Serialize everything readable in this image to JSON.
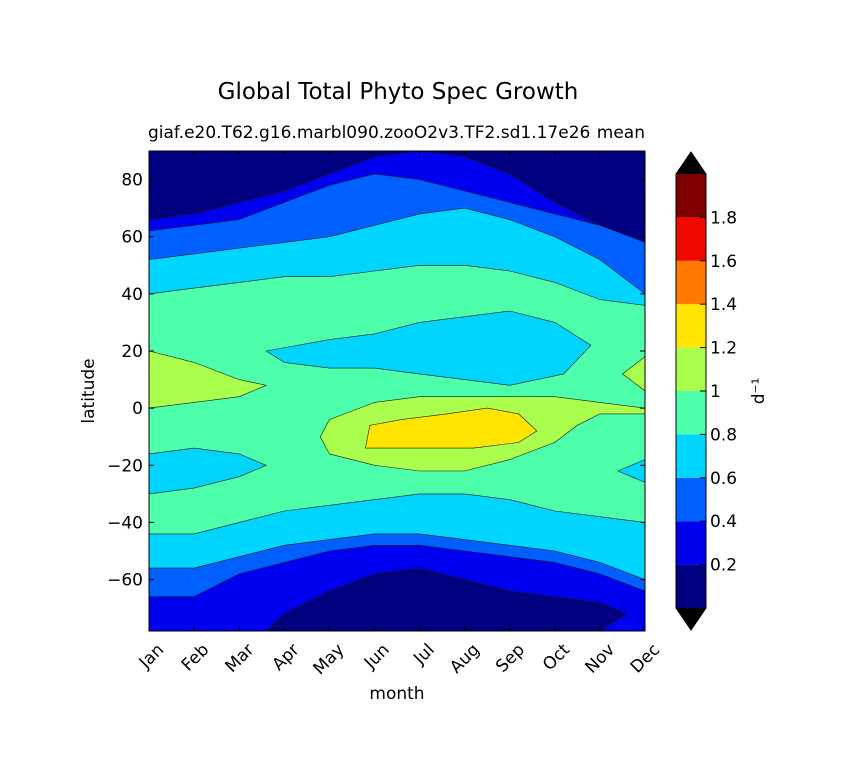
{
  "chart_data": {
    "type": "contour",
    "title": "Global Total Phyto Spec Growth",
    "subtitle_left": "giaf.e20.T62.g16.marbl090.zooO2v3.TF2.sd1.17e26",
    "subtitle_right": "mean",
    "xlabel": "month",
    "ylabel": "latitude",
    "colorbar_label": "d⁻¹",
    "x_ticks": [
      "Jan",
      "Feb",
      "Mar",
      "Apr",
      "May",
      "Jun",
      "Jul",
      "Aug",
      "Sep",
      "Oct",
      "Nov",
      "Dec"
    ],
    "y_ticks": [
      {
        "value": 80,
        "label": "80"
      },
      {
        "value": 60,
        "label": "60"
      },
      {
        "value": 40,
        "label": "40"
      },
      {
        "value": 20,
        "label": "20"
      },
      {
        "value": 0,
        "label": "0"
      },
      {
        "value": -20,
        "label": "−20"
      },
      {
        "value": -40,
        "label": "−40"
      },
      {
        "value": -60,
        "label": "−60"
      }
    ],
    "ylim": [
      -78,
      90
    ],
    "xlim": [
      0,
      11
    ],
    "levels": [
      0.0,
      0.2,
      0.4,
      0.6,
      0.8,
      1.0,
      1.2,
      1.4,
      1.6,
      1.8,
      2.0
    ],
    "colorbar_ticks": [
      {
        "value": 0.2,
        "label": "0.2"
      },
      {
        "value": 0.4,
        "label": "0.4"
      },
      {
        "value": 0.6,
        "label": "0.6"
      },
      {
        "value": 0.8,
        "label": "0.8"
      },
      {
        "value": 1.0,
        "label": "1"
      },
      {
        "value": 1.2,
        "label": "1.2"
      },
      {
        "value": 1.4,
        "label": "1.4"
      },
      {
        "value": 1.6,
        "label": "1.6"
      },
      {
        "value": 1.8,
        "label": "1.8"
      }
    ],
    "colors": [
      "#000080",
      "#0000f1",
      "#0060ff",
      "#00d5ff",
      "#4dffaa",
      "#aaff4d",
      "#ffe500",
      "#ff7800",
      "#f10800",
      "#800000"
    ],
    "under_color": "#000000",
    "over_color": "#000000",
    "regions": [
      {
        "level_index": 2,
        "polygon": [
          [
            0,
            90
          ],
          [
            11,
            90
          ],
          [
            11,
            -78
          ],
          [
            0,
            -78
          ]
        ]
      },
      {
        "level_index": 1,
        "polygon": [
          [
            0,
            90
          ],
          [
            11,
            90
          ],
          [
            11,
            60
          ],
          [
            10,
            64
          ],
          [
            9,
            68
          ],
          [
            8,
            72
          ],
          [
            7,
            76
          ],
          [
            6,
            80
          ],
          [
            5,
            82
          ],
          [
            4,
            78
          ],
          [
            3,
            72
          ],
          [
            2,
            66
          ],
          [
            1,
            64
          ],
          [
            0,
            62
          ]
        ]
      },
      {
        "level_index": 0,
        "polygon": [
          [
            0,
            90
          ],
          [
            11,
            90
          ],
          [
            11,
            58
          ],
          [
            10,
            64
          ],
          [
            9,
            72
          ],
          [
            8,
            82
          ],
          [
            7,
            88
          ],
          [
            6,
            90
          ],
          [
            5,
            88
          ],
          [
            4,
            82
          ],
          [
            3,
            76
          ],
          [
            2,
            72
          ],
          [
            1,
            68
          ],
          [
            0,
            66
          ]
        ]
      },
      {
        "level_index": 1,
        "polygon": [
          [
            0,
            -78
          ],
          [
            11,
            -78
          ],
          [
            11,
            -64
          ],
          [
            10,
            -58
          ],
          [
            9,
            -54
          ],
          [
            8,
            -52
          ],
          [
            7,
            -50
          ],
          [
            6,
            -48
          ],
          [
            5,
            -48
          ],
          [
            4,
            -50
          ],
          [
            3,
            -54
          ],
          [
            2,
            -58
          ],
          [
            1,
            -66
          ],
          [
            0,
            -66
          ]
        ]
      },
      {
        "level_index": 0,
        "polygon": [
          [
            2.6,
            -78
          ],
          [
            10,
            -78
          ],
          [
            10.6,
            -72
          ],
          [
            10,
            -68
          ],
          [
            9,
            -66
          ],
          [
            8,
            -64
          ],
          [
            7,
            -60
          ],
          [
            6,
            -56
          ],
          [
            5,
            -58
          ],
          [
            4,
            -64
          ],
          [
            3,
            -72
          ]
        ]
      },
      {
        "level_index": 3,
        "polygon": [
          [
            0,
            52
          ],
          [
            1,
            54
          ],
          [
            2,
            56
          ],
          [
            3,
            58
          ],
          [
            4,
            60
          ],
          [
            5,
            64
          ],
          [
            6,
            68
          ],
          [
            7,
            70
          ],
          [
            8,
            66
          ],
          [
            9,
            60
          ],
          [
            10,
            52
          ],
          [
            11,
            40
          ],
          [
            11,
            -60
          ],
          [
            10,
            -54
          ],
          [
            9,
            -50
          ],
          [
            8,
            -48
          ],
          [
            7,
            -46
          ],
          [
            6,
            -44
          ],
          [
            5,
            -44
          ],
          [
            4,
            -46
          ],
          [
            3,
            -48
          ],
          [
            2,
            -52
          ],
          [
            1,
            -56
          ],
          [
            0,
            -56
          ]
        ]
      },
      {
        "level_index": 4,
        "polygon": [
          [
            0,
            40
          ],
          [
            1,
            42
          ],
          [
            2,
            44
          ],
          [
            3,
            46
          ],
          [
            4,
            46
          ],
          [
            5,
            48
          ],
          [
            6,
            50
          ],
          [
            7,
            50
          ],
          [
            8,
            48
          ],
          [
            9,
            44
          ],
          [
            10,
            38
          ],
          [
            11,
            36
          ],
          [
            11,
            -40
          ],
          [
            10,
            -38
          ],
          [
            9,
            -36
          ],
          [
            8,
            -32
          ],
          [
            7,
            -30
          ],
          [
            6,
            -30
          ],
          [
            5,
            -32
          ],
          [
            4,
            -34
          ],
          [
            3,
            -36
          ],
          [
            2,
            -40
          ],
          [
            1,
            -44
          ],
          [
            0,
            -44
          ]
        ]
      },
      {
        "level_index": 3,
        "polygon": [
          [
            2.6,
            20
          ],
          [
            4,
            24
          ],
          [
            5,
            26
          ],
          [
            6,
            30
          ],
          [
            7,
            32
          ],
          [
            8,
            34
          ],
          [
            9,
            30
          ],
          [
            9.8,
            22
          ],
          [
            9.2,
            12
          ],
          [
            8,
            8
          ],
          [
            7,
            10
          ],
          [
            6,
            12
          ],
          [
            5,
            14
          ],
          [
            4,
            14
          ],
          [
            3,
            16
          ]
        ]
      },
      {
        "level_index": 3,
        "polygon": [
          [
            0,
            -16
          ],
          [
            1,
            -14
          ],
          [
            2,
            -16
          ],
          [
            2.6,
            -20
          ],
          [
            2,
            -24
          ],
          [
            1,
            -28
          ],
          [
            0,
            -30
          ]
        ]
      },
      {
        "level_index": 3,
        "polygon": [
          [
            11,
            -18
          ],
          [
            10.4,
            -22
          ],
          [
            11,
            -26
          ]
        ]
      },
      {
        "level_index": 5,
        "polygon": [
          [
            0,
            20
          ],
          [
            1,
            16
          ],
          [
            2,
            10
          ],
          [
            2.6,
            8
          ],
          [
            2,
            4
          ],
          [
            1,
            2
          ],
          [
            0,
            0
          ]
        ]
      },
      {
        "level_index": 5,
        "polygon": [
          [
            11,
            18
          ],
          [
            10.5,
            12
          ],
          [
            11,
            6
          ]
        ]
      },
      {
        "level_index": 5,
        "polygon": [
          [
            3.8,
            -10
          ],
          [
            4,
            -4
          ],
          [
            5,
            2
          ],
          [
            6,
            4
          ],
          [
            7,
            4
          ],
          [
            8,
            4
          ],
          [
            9,
            4
          ],
          [
            10,
            2
          ],
          [
            11,
            0
          ],
          [
            11,
            -2
          ],
          [
            10,
            -2
          ],
          [
            9.5,
            -6
          ],
          [
            9,
            -12
          ],
          [
            8,
            -18
          ],
          [
            7,
            -22
          ],
          [
            6,
            -22
          ],
          [
            5,
            -20
          ],
          [
            4,
            -16
          ]
        ]
      },
      {
        "level_index": 6,
        "polygon": [
          [
            4.8,
            -14
          ],
          [
            4.9,
            -6
          ],
          [
            5.6,
            -4
          ],
          [
            6.6,
            -2
          ],
          [
            7.5,
            0
          ],
          [
            8.2,
            -2
          ],
          [
            8.6,
            -8
          ],
          [
            8.2,
            -12
          ],
          [
            7.2,
            -14
          ],
          [
            6,
            -14
          ]
        ]
      }
    ]
  }
}
